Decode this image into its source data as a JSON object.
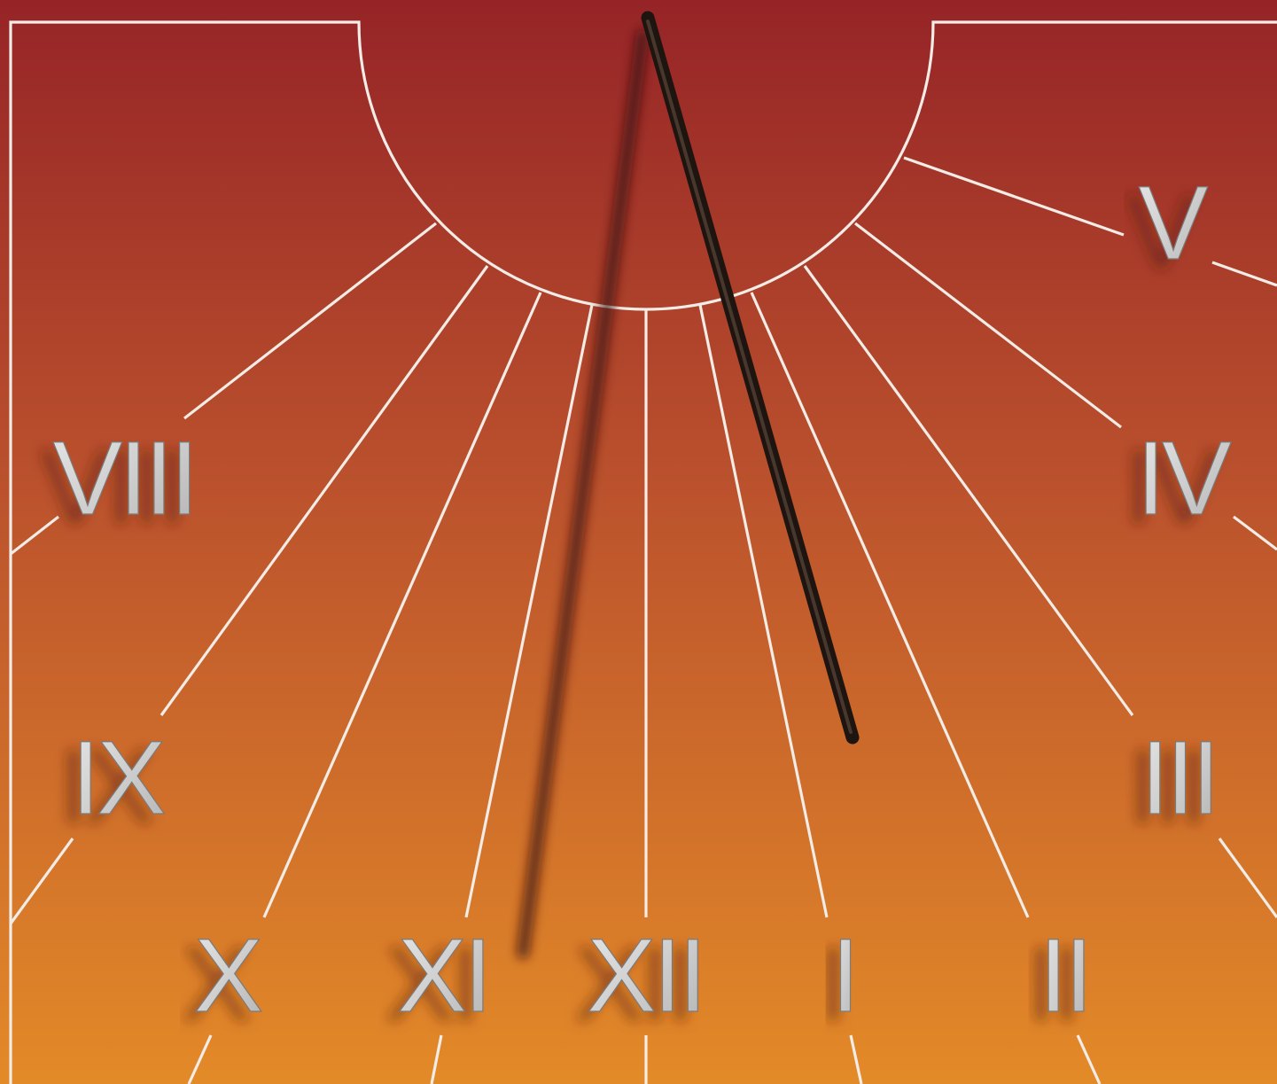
{
  "dial": {
    "gradient_top": "#962427",
    "gradient_mid": "#c0572d",
    "gradient_bottom": "#e38a28",
    "line_color": "#f1ece6",
    "gnomon_color": "#1e1410"
  },
  "hours": [
    {
      "id": "viii",
      "label": "VIII"
    },
    {
      "id": "ix",
      "label": "IX"
    },
    {
      "id": "x",
      "label": "X"
    },
    {
      "id": "xi",
      "label": "XI"
    },
    {
      "id": "xii",
      "label": "XII"
    },
    {
      "id": "i",
      "label": "I"
    },
    {
      "id": "ii",
      "label": "II"
    },
    {
      "id": "iii",
      "label": "III"
    },
    {
      "id": "iv",
      "label": "IV"
    },
    {
      "id": "v",
      "label": "V"
    }
  ]
}
